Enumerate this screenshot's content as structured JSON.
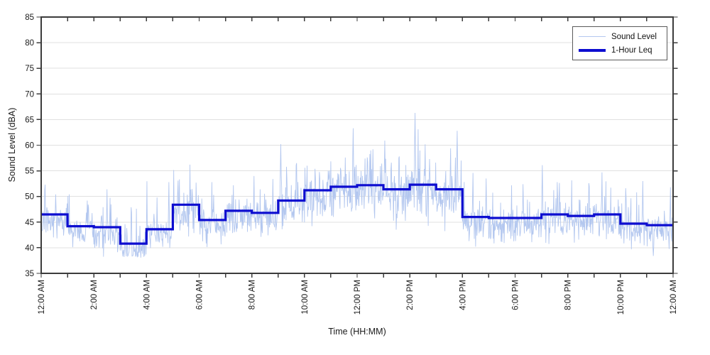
{
  "figure": {
    "background": "#ffffff",
    "colors": {
      "grid": "#e0e0e0",
      "axis": "#3c3c3c",
      "tick_text": "#1a1a1a"
    }
  },
  "chart_data": {
    "type": "line",
    "title": "",
    "xlabel": "Time (HH:MM)",
    "ylabel": "Sound Level (dBA)",
    "xlim_hours": [
      0,
      24
    ],
    "ylim": [
      35,
      85
    ],
    "y_ticks": [
      35,
      40,
      45,
      50,
      55,
      60,
      65,
      70,
      75,
      80,
      85
    ],
    "x_major_tick_hours": [
      0,
      2,
      4,
      6,
      8,
      10,
      12,
      14,
      16,
      18,
      20,
      22,
      24
    ],
    "x_tick_labels": [
      "12:00 AM",
      "2:00 AM",
      "4:00 AM",
      "6:00 AM",
      "8:00 AM",
      "10:00 AM",
      "12:00 PM",
      "2:00 PM",
      "4:00 PM",
      "6:00 PM",
      "8:00 PM",
      "10:00 PM",
      "12:00 AM"
    ],
    "x_minor_tick_every_hours": 1,
    "grid": "horizontal-only",
    "legend": {
      "position": "top-right",
      "entries": [
        {
          "label": "Sound Level",
          "color": "#b3c7ef",
          "line_width": 1
        },
        {
          "label": "1-Hour Leq",
          "color": "#0d0dd0",
          "line_width": 4
        }
      ]
    },
    "series": [
      {
        "name": "Sound Level",
        "style": "raw-minute-samples",
        "color": "#b3c7ef",
        "line_width": 0.9,
        "points_per_hour": 60,
        "seed": 1337,
        "baseline_offset_dba": -1.2,
        "clamp_min_dba": 38.0,
        "spike_probability": 0.05,
        "visible_peaks": [
          {
            "hour": 0.15,
            "dba": 52.3
          },
          {
            "hour": 0.55,
            "dba": 50.4
          },
          {
            "hour": 1.02,
            "dba": 50.1
          },
          {
            "hour": 1.75,
            "dba": 49.2
          },
          {
            "hour": 2.5,
            "dba": 51.4
          },
          {
            "hour": 3.42,
            "dba": 47.9
          },
          {
            "hour": 4.4,
            "dba": 49.8
          },
          {
            "hour": 4.85,
            "dba": 52.8
          },
          {
            "hour": 5.2,
            "dba": 53.1
          },
          {
            "hour": 6.1,
            "dba": 49.6
          },
          {
            "hour": 6.55,
            "dba": 50.3
          },
          {
            "hour": 7.3,
            "dba": 52.2
          },
          {
            "hour": 8.08,
            "dba": 54.0
          },
          {
            "hour": 8.8,
            "dba": 53.4
          },
          {
            "hour": 9.1,
            "dba": 60.2
          },
          {
            "hour": 9.7,
            "dba": 56.5
          },
          {
            "hour": 10.4,
            "dba": 55.4
          },
          {
            "hour": 10.9,
            "dba": 55.0
          },
          {
            "hour": 11.55,
            "dba": 57.6
          },
          {
            "hour": 11.85,
            "dba": 63.3
          },
          {
            "hour": 12.3,
            "dba": 57.4
          },
          {
            "hour": 12.6,
            "dba": 59.2
          },
          {
            "hour": 13.05,
            "dba": 60.9
          },
          {
            "hour": 13.6,
            "dba": 57.8
          },
          {
            "hour": 14.2,
            "dba": 66.3
          },
          {
            "hour": 14.75,
            "dba": 57.3
          },
          {
            "hour": 15.55,
            "dba": 59.4
          },
          {
            "hour": 15.8,
            "dba": 62.8
          },
          {
            "hour": 16.4,
            "dba": 54.6
          },
          {
            "hour": 16.9,
            "dba": 53.5
          },
          {
            "hour": 18.3,
            "dba": 52.4
          },
          {
            "hour": 19.03,
            "dba": 56.1
          },
          {
            "hour": 19.6,
            "dba": 52.8
          },
          {
            "hour": 20.8,
            "dba": 52.6
          },
          {
            "hour": 21.3,
            "dba": 54.7
          },
          {
            "hour": 22.2,
            "dba": 51.6
          },
          {
            "hour": 22.85,
            "dba": 53.0
          },
          {
            "hour": 23.9,
            "dba": 51.8
          }
        ]
      },
      {
        "name": "1-Hour Leq",
        "style": "step",
        "color": "#0d0dd0",
        "line_width": 3.2,
        "hourly_leq_dba": [
          46.5,
          44.2,
          44.0,
          40.8,
          43.6,
          48.4,
          45.4,
          47.2,
          46.8,
          49.2,
          51.2,
          51.9,
          52.2,
          51.4,
          52.3,
          51.4,
          46.0,
          45.8,
          45.8,
          46.5,
          46.2,
          46.5,
          44.7,
          44.4
        ]
      }
    ]
  }
}
